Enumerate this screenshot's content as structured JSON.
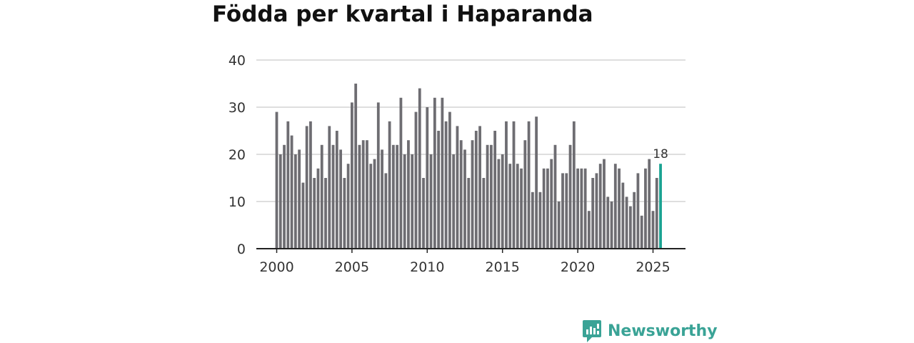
{
  "brand": {
    "name": "Newsworthy",
    "color": "#3aa396"
  },
  "chart_data": {
    "type": "bar",
    "title": "Födda per kvartal i Haparanda",
    "xlabel": "",
    "ylabel": "",
    "ylim": [
      0,
      40
    ],
    "yticks": [
      0,
      10,
      20,
      30,
      40
    ],
    "xticks": [
      2000,
      2005,
      2010,
      2015,
      2020,
      2025
    ],
    "grid": true,
    "bar_color": "#6e6d72",
    "highlight_color": "#1aa392",
    "start_year": 2000,
    "start_quarter": 1,
    "values": [
      29,
      20,
      22,
      27,
      24,
      20,
      21,
      14,
      26,
      27,
      15,
      17,
      22,
      15,
      26,
      22,
      25,
      21,
      15,
      18,
      31,
      35,
      22,
      23,
      23,
      18,
      19,
      31,
      21,
      16,
      27,
      22,
      22,
      32,
      20,
      23,
      20,
      29,
      34,
      15,
      30,
      20,
      32,
      25,
      32,
      27,
      29,
      20,
      26,
      23,
      21,
      15,
      23,
      25,
      26,
      15,
      22,
      22,
      25,
      19,
      20,
      27,
      18,
      27,
      18,
      17,
      23,
      27,
      12,
      28,
      12,
      17,
      17,
      19,
      22,
      10,
      16,
      16,
      22,
      27,
      17,
      17,
      17,
      8,
      15,
      16,
      18,
      19,
      11,
      10,
      18,
      17,
      14,
      11,
      9,
      12,
      16,
      7,
      17,
      19,
      8,
      15,
      18
    ],
    "highlight": {
      "index": 102,
      "label": "18"
    }
  }
}
